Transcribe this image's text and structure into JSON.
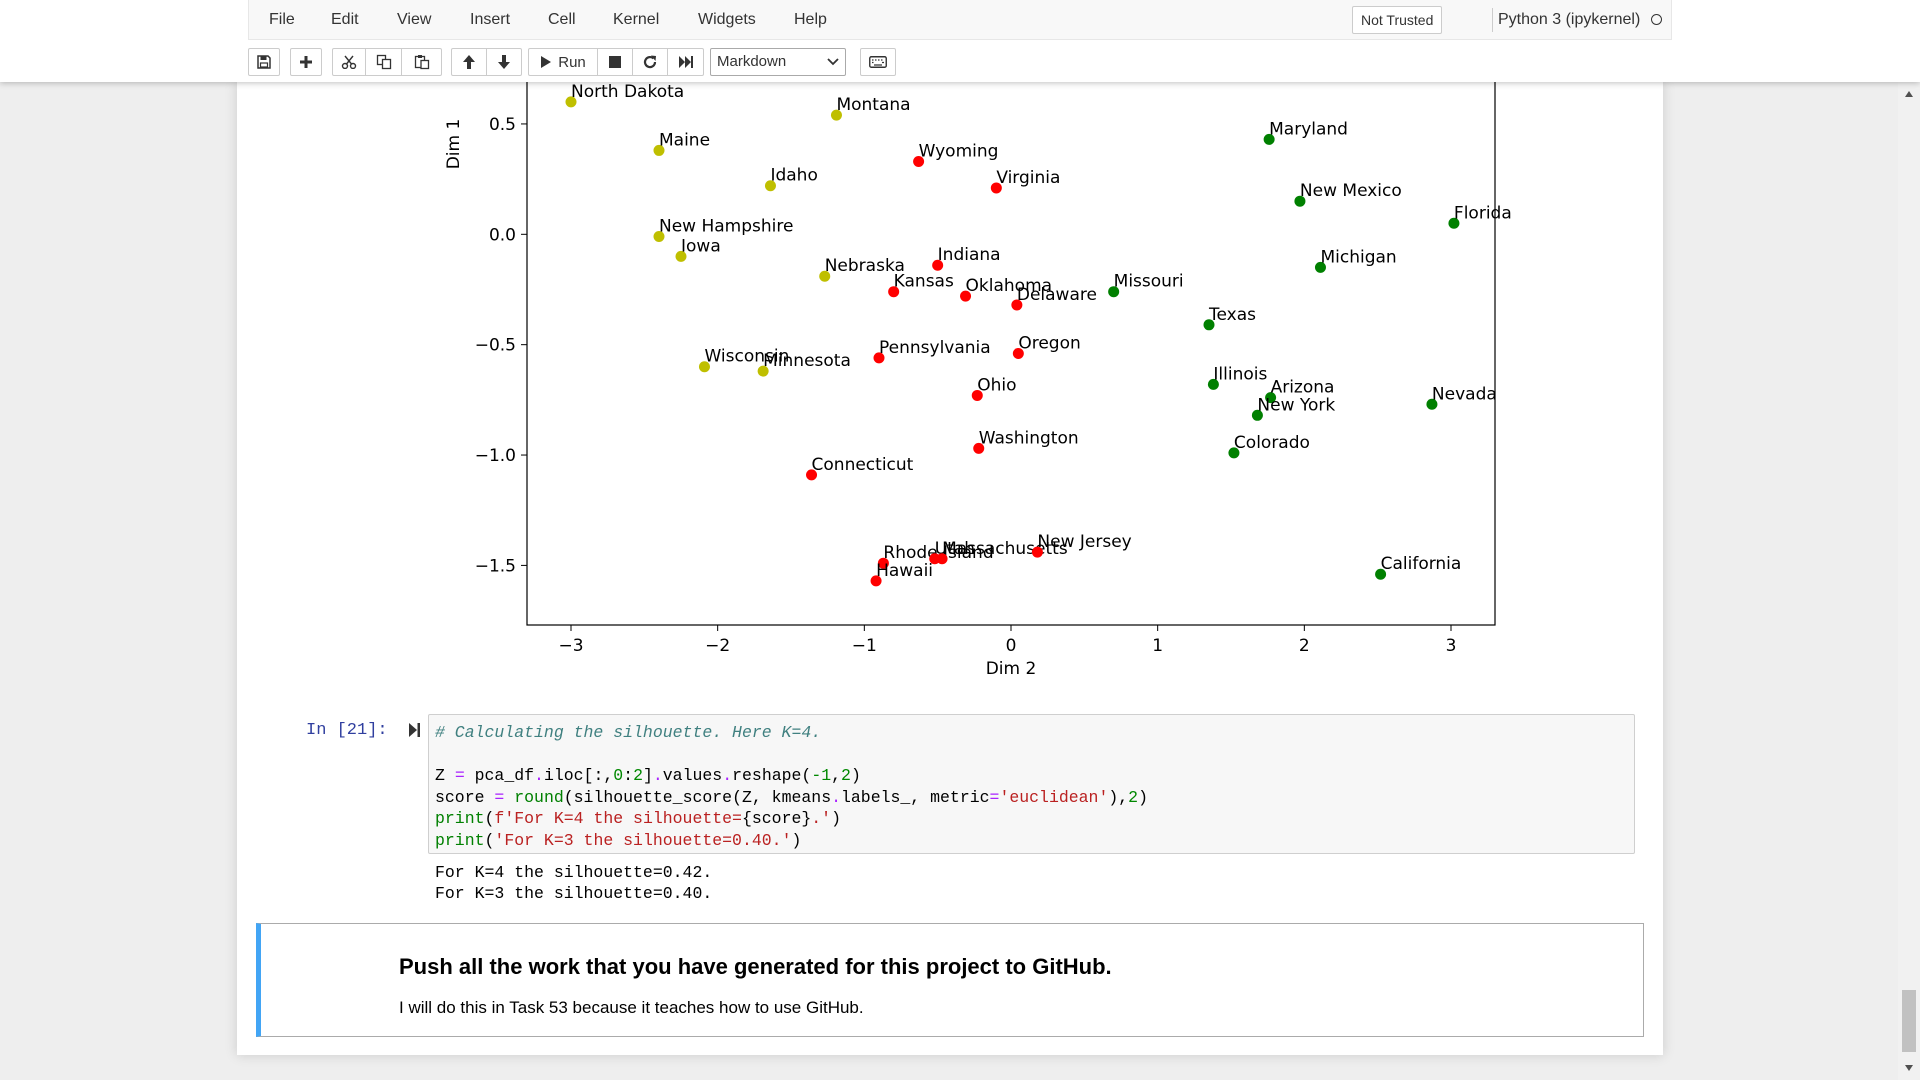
{
  "menu": {
    "items": [
      "File",
      "Edit",
      "View",
      "Insert",
      "Cell",
      "Kernel",
      "Widgets",
      "Help"
    ],
    "trust_label": "Not Trusted",
    "kernel_name": "Python 3 (ipykernel)"
  },
  "toolbar": {
    "icons": [
      "save-icon",
      "plus-icon",
      "cut-icon",
      "copy-icon",
      "paste-icon",
      "arrow-up-icon",
      "arrow-down-icon",
      "run-icon",
      "stop-icon",
      "restart-icon",
      "fast-forward-icon",
      "keyboard-icon"
    ],
    "run_label": "Run",
    "cell_type": "Markdown"
  },
  "chart_data": {
    "type": "scatter",
    "xlabel": "Dim 2",
    "ylabel": "Dim 1",
    "xlim": [
      -3.3,
      3.3
    ],
    "ylim": [
      -1.77,
      0.69
    ],
    "xticks": [
      -3,
      -2,
      -1,
      0,
      1,
      2,
      3
    ],
    "xtick_labels": [
      "−3",
      "−2",
      "−1",
      "0",
      "1",
      "2",
      "3"
    ],
    "yticks": [
      0.5,
      0.0,
      -0.5,
      -1.0,
      -1.5
    ],
    "ytick_labels": [
      "0.5",
      "0.0",
      "−0.5",
      "−1.0",
      "−1.5"
    ],
    "colors": {
      "yellow": "#bfbf00",
      "red": "#ff0000",
      "green": "#008000"
    },
    "points": [
      {
        "label": "North Dakota",
        "x": -3.0,
        "y": 0.6,
        "color": "yellow"
      },
      {
        "label": "Montana",
        "x": -1.19,
        "y": 0.54,
        "color": "yellow"
      },
      {
        "label": "Maine",
        "x": -2.4,
        "y": 0.38,
        "color": "yellow"
      },
      {
        "label": "Idaho",
        "x": -1.64,
        "y": 0.22,
        "color": "yellow"
      },
      {
        "label": "New Hampshire",
        "x": -2.4,
        "y": -0.01,
        "color": "yellow"
      },
      {
        "label": "Iowa",
        "x": -2.25,
        "y": -0.1,
        "color": "yellow"
      },
      {
        "label": "Nebraska",
        "x": -1.27,
        "y": -0.19,
        "color": "yellow"
      },
      {
        "label": "Wisconsin",
        "x": -2.09,
        "y": -0.6,
        "color": "yellow"
      },
      {
        "label": "Minnesota",
        "x": -1.69,
        "y": -0.62,
        "color": "yellow"
      },
      {
        "label": "Wyoming",
        "x": -0.63,
        "y": 0.33,
        "color": "red"
      },
      {
        "label": "Virginia",
        "x": -0.1,
        "y": 0.21,
        "color": "red"
      },
      {
        "label": "Indiana",
        "x": -0.5,
        "y": -0.14,
        "color": "red"
      },
      {
        "label": "Kansas",
        "x": -0.8,
        "y": -0.26,
        "color": "red"
      },
      {
        "label": "Oklahoma",
        "x": -0.31,
        "y": -0.28,
        "color": "red"
      },
      {
        "label": "Delaware",
        "x": 0.04,
        "y": -0.32,
        "color": "red"
      },
      {
        "label": "Pennsylvania",
        "x": -0.9,
        "y": -0.56,
        "color": "red"
      },
      {
        "label": "Oregon",
        "x": 0.05,
        "y": -0.54,
        "color": "red"
      },
      {
        "label": "Ohio",
        "x": -0.23,
        "y": -0.73,
        "color": "red"
      },
      {
        "label": "Washington",
        "x": -0.22,
        "y": -0.97,
        "color": "red"
      },
      {
        "label": "Connecticut",
        "x": -1.36,
        "y": -1.09,
        "color": "red"
      },
      {
        "label": "Rhode Island",
        "x": -0.87,
        "y": -1.49,
        "color": "red"
      },
      {
        "label": "Utah",
        "x": -0.52,
        "y": -1.47,
        "color": "red"
      },
      {
        "label": "Massachusetts",
        "x": -0.47,
        "y": -1.47,
        "color": "red"
      },
      {
        "label": "New Jersey",
        "x": 0.18,
        "y": -1.44,
        "color": "red"
      },
      {
        "label": "Hawaii",
        "x": -0.92,
        "y": -1.57,
        "color": "red"
      },
      {
        "label": "Maryland",
        "x": 1.76,
        "y": 0.43,
        "color": "green"
      },
      {
        "label": "New Mexico",
        "x": 1.97,
        "y": 0.15,
        "color": "green"
      },
      {
        "label": "Florida",
        "x": 3.02,
        "y": 0.05,
        "color": "green"
      },
      {
        "label": "Michigan",
        "x": 2.11,
        "y": -0.15,
        "color": "green"
      },
      {
        "label": "Missouri",
        "x": 0.7,
        "y": -0.26,
        "color": "green"
      },
      {
        "label": "Texas",
        "x": 1.35,
        "y": -0.41,
        "color": "green"
      },
      {
        "label": "Illinois",
        "x": 1.38,
        "y": -0.68,
        "color": "green"
      },
      {
        "label": "Arizona",
        "x": 1.77,
        "y": -0.74,
        "color": "green"
      },
      {
        "label": "New York",
        "x": 1.68,
        "y": -0.82,
        "color": "green"
      },
      {
        "label": "Nevada",
        "x": 2.87,
        "y": -0.77,
        "color": "green"
      },
      {
        "label": "Colorado",
        "x": 1.52,
        "y": -0.99,
        "color": "green"
      },
      {
        "label": "California",
        "x": 2.52,
        "y": -1.54,
        "color": "green"
      }
    ]
  },
  "code_cell": {
    "prompt": "In [21]:",
    "lines": [
      [
        {
          "t": "# Calculating the silhouette. Here K=4.",
          "c": "comment"
        }
      ],
      [
        {
          "t": "",
          "c": ""
        }
      ],
      [
        {
          "t": "Z ",
          "c": ""
        },
        {
          "t": "=",
          "c": "op"
        },
        {
          "t": " pca_df",
          "c": ""
        },
        {
          "t": ".",
          "c": "op"
        },
        {
          "t": "iloc[:,",
          "c": ""
        },
        {
          "t": "0",
          "c": "num"
        },
        {
          "t": ":",
          "c": ""
        },
        {
          "t": "2",
          "c": "num"
        },
        {
          "t": "]",
          "c": ""
        },
        {
          "t": ".",
          "c": "op"
        },
        {
          "t": "values",
          "c": ""
        },
        {
          "t": ".",
          "c": "op"
        },
        {
          "t": "reshape(",
          "c": ""
        },
        {
          "t": "-1",
          "c": "num"
        },
        {
          "t": ",",
          "c": ""
        },
        {
          "t": "2",
          "c": "num"
        },
        {
          "t": ")",
          "c": ""
        }
      ],
      [
        {
          "t": "score ",
          "c": ""
        },
        {
          "t": "=",
          "c": "op"
        },
        {
          "t": " ",
          "c": ""
        },
        {
          "t": "round",
          "c": "builtin"
        },
        {
          "t": "(silhouette_score(Z, kmeans",
          "c": ""
        },
        {
          "t": ".",
          "c": "op"
        },
        {
          "t": "labels_, metric",
          "c": ""
        },
        {
          "t": "=",
          "c": "op"
        },
        {
          "t": "'euclidean'",
          "c": "str"
        },
        {
          "t": "),",
          "c": ""
        },
        {
          "t": "2",
          "c": "num"
        },
        {
          "t": ")",
          "c": ""
        }
      ],
      [
        {
          "t": "print",
          "c": "builtin"
        },
        {
          "t": "(",
          "c": ""
        },
        {
          "t": "f'For K=4 the silhouette=",
          "c": "str"
        },
        {
          "t": "{score}",
          "c": ""
        },
        {
          "t": ".'",
          "c": "str"
        },
        {
          "t": ")",
          "c": ""
        }
      ],
      [
        {
          "t": "print",
          "c": "builtin"
        },
        {
          "t": "(",
          "c": ""
        },
        {
          "t": "'For K=3 the silhouette=0.40.'",
          "c": "str"
        },
        {
          "t": ")",
          "c": ""
        }
      ]
    ],
    "output": [
      "For K=4 the silhouette=0.42.",
      "For K=3 the silhouette=0.40."
    ]
  },
  "markdown_cell": {
    "heading": "Push all the work that you have generated for this project to GitHub.",
    "text": "I will do this in Task 53 because it teaches how to use GitHub."
  }
}
